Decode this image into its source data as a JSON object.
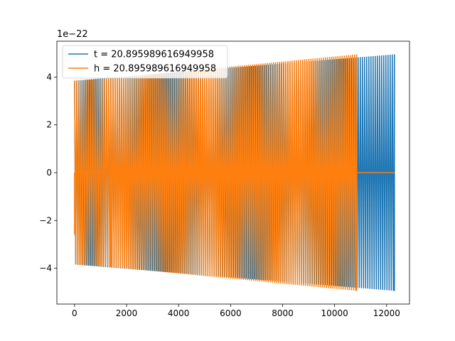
{
  "chart_data": {
    "type": "line",
    "title": "",
    "xlabel": "",
    "ylabel": "",
    "y_offset_label": "1e−22",
    "y_scale": 1e-22,
    "xlim": [
      -680,
      12880
    ],
    "ylim": [
      -5.5,
      5.5
    ],
    "x_ticks": [
      0,
      2000,
      4000,
      6000,
      8000,
      10000,
      12000
    ],
    "x_tick_labels": [
      "0",
      "2000",
      "4000",
      "6000",
      "8000",
      "10000",
      "12000"
    ],
    "y_ticks": [
      -4,
      -2,
      0,
      2,
      4
    ],
    "y_tick_labels": [
      "−4",
      "−2",
      "0",
      "2",
      "4"
    ],
    "grid": false,
    "legend_position": "upper-left",
    "series": [
      {
        "name": "t = 20.895989616949958",
        "color": "#1f77b4",
        "segments": [
          {
            "x_start": 0,
            "x_end": 12300,
            "amp_start": 3.85,
            "amp_end": 4.95,
            "cycles": 150
          }
        ]
      },
      {
        "name": "h = 20.895989616949958",
        "color": "#ff7f0e",
        "segments": [
          {
            "x_start": 0,
            "x_end": 1400,
            "amp_start": 3.85,
            "amp_end": 3.95,
            "cycles": 16,
            "zero_center_from": 0,
            "zero_center_to": 1400
          },
          {
            "x_start": 1400,
            "x_end": 10850,
            "amp_start": 3.95,
            "amp_end": 4.95,
            "cycles": 118
          }
        ],
        "flat_zero": [
          [
            0,
            1400
          ],
          [
            10850,
            12300
          ]
        ],
        "initial_dip": -2.6
      }
    ]
  }
}
